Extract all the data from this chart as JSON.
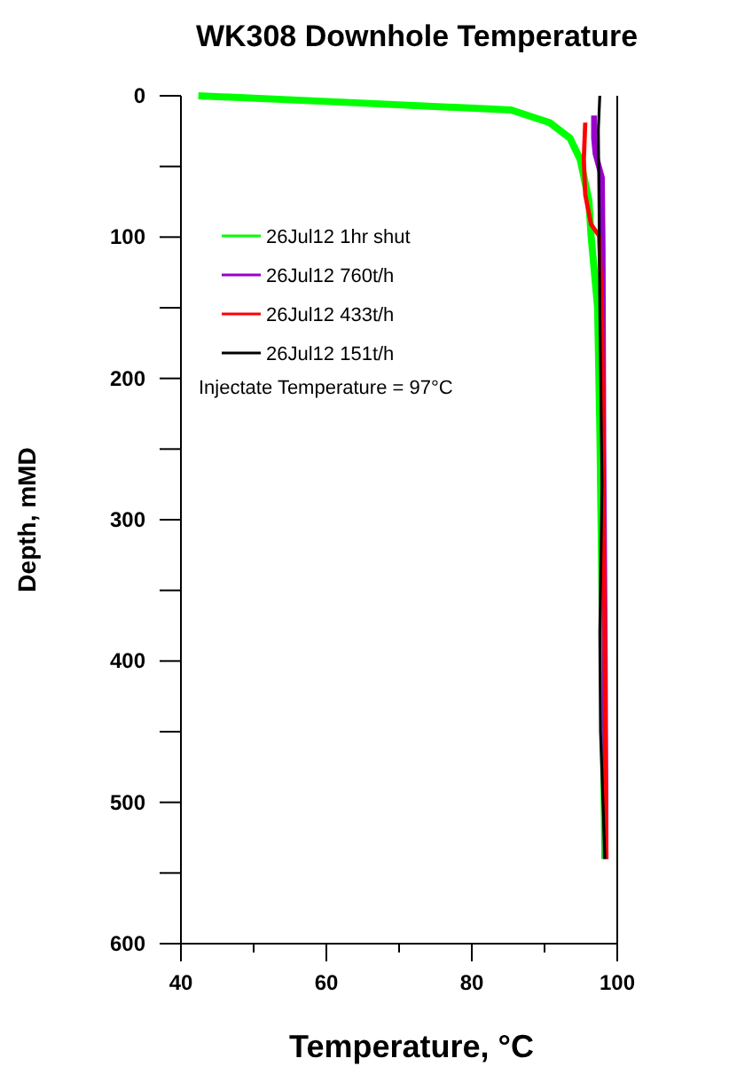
{
  "chart_data": {
    "type": "line",
    "title": "WK308 Downhole Temperature",
    "xlabel": "Temperature, °C",
    "ylabel": "Depth, mMD",
    "xlim": [
      40,
      100
    ],
    "xticks": [
      40,
      {
        "value": 50,
        "label": null
      },
      60,
      {
        "value": 70,
        "label": null
      },
      80,
      {
        "value": 90,
        "label": null
      },
      100
    ],
    "ylim": [
      600,
      0
    ],
    "yticks": [
      0,
      {
        "value": 50,
        "label": null
      },
      100,
      {
        "value": 150,
        "label": null
      },
      200,
      {
        "value": 250,
        "label": null
      },
      300,
      {
        "value": 350,
        "label": null
      },
      400,
      {
        "value": 450,
        "label": null
      },
      500,
      {
        "value": 550,
        "label": null
      },
      600
    ],
    "grid": false,
    "legend": "top left",
    "marker": "none",
    "line_style": "solid",
    "annotations": [
      "Injectate Temperature = 97°C"
    ],
    "series": [
      {
        "name": "26Jul12 1hr shut",
        "color": "#00ff00",
        "x": [
          42.4,
          60,
          85.4,
          90.7,
          93.5,
          94.9,
          96.1,
          96.4,
          97.3,
          97.6,
          97.9,
          98.1,
          98.3
        ],
        "values": [
          0,
          4,
          10,
          19,
          30,
          45,
          74,
          99,
          150,
          234,
          350,
          450,
          540
        ]
      },
      {
        "name": "26Jul12 760t/h",
        "color": "#9900cc",
        "x": [
          96.8,
          96.8,
          97.0,
          97.9,
          98.0,
          98.1,
          98.3,
          98.4
        ],
        "values": [
          14,
          30,
          41,
          58,
          108,
          250,
          400,
          540
        ]
      },
      {
        "name": "26Jul12 433t/h",
        "color": "#ff0000",
        "x": [
          95.6,
          95.4,
          95.6,
          96.4,
          97.5,
          97.9,
          98.1,
          98.3,
          98.5
        ],
        "values": [
          19,
          45,
          70,
          91,
          99,
          150,
          275,
          400,
          540
        ]
      },
      {
        "name": "26Jul12 151t/h",
        "color": "#000000",
        "x": [
          97.6,
          97.4,
          97.5,
          97.6,
          97.9,
          97.6,
          97.7,
          98.3
        ],
        "values": [
          0,
          24,
          80,
          150,
          275,
          380,
          450,
          540
        ]
      }
    ]
  }
}
